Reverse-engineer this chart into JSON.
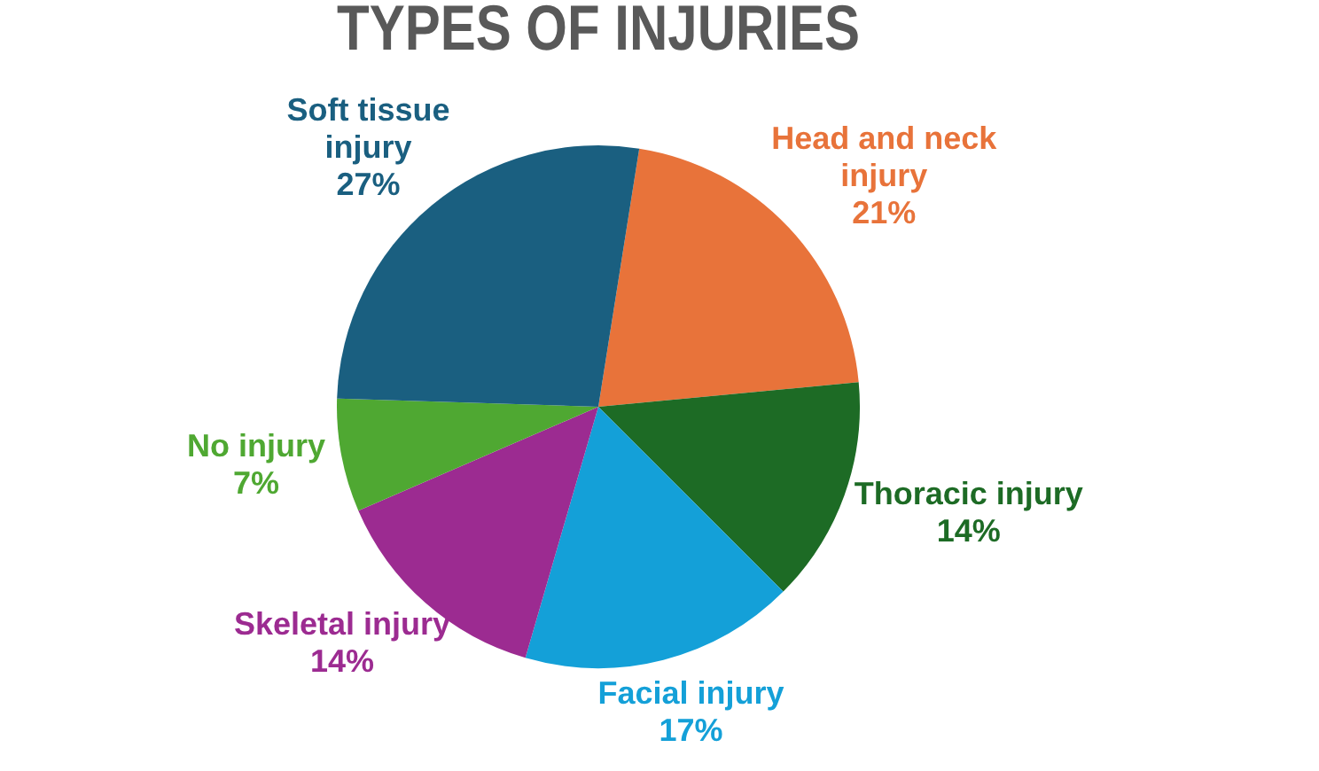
{
  "chart_data": {
    "type": "pie",
    "title": "TYPES OF INJURIES",
    "categories": [
      "Head and neck injury",
      "Thoracic injury",
      "Facial injury",
      "Skeletal injury",
      "No injury",
      "Soft tissue injury"
    ],
    "values": [
      21,
      14,
      17,
      14,
      7,
      27
    ],
    "colors": [
      "#e8733a",
      "#1d6b25",
      "#14a0d8",
      "#9c2b91",
      "#4fa832",
      "#1a5f80"
    ],
    "value_labels": [
      "21%",
      "14%",
      "17%",
      "14%",
      "7%",
      "27%"
    ]
  }
}
